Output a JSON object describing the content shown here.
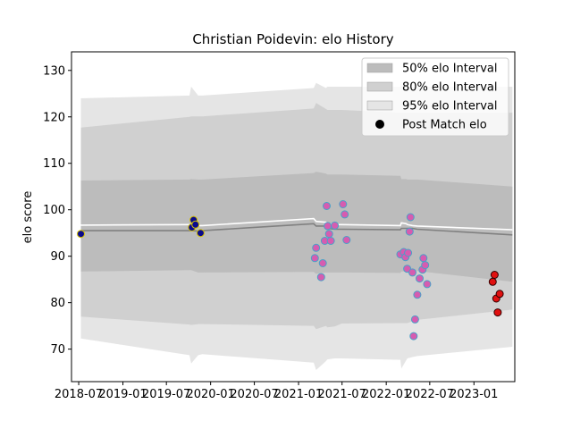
{
  "chart_data": {
    "type": "scatter",
    "title": "Christian Poidevin: elo History",
    "xlabel": "",
    "ylabel": "elo score",
    "xlim": [
      "2018-06-01",
      "2023-06-20"
    ],
    "ylim": [
      63,
      134
    ],
    "x_ticks": [
      "2018-07",
      "2019-01",
      "2019-07",
      "2020-01",
      "2020-07",
      "2021-01",
      "2021-07",
      "2022-01",
      "2022-07",
      "2023-01"
    ],
    "y_ticks": [
      70,
      80,
      90,
      100,
      110,
      120,
      130
    ],
    "grid": false,
    "legend": {
      "position": "top-right",
      "entries": [
        "50% elo Interval",
        "80% elo Interval",
        "95% elo Interval",
        "Post Match elo"
      ]
    },
    "intervals": {
      "dates": [
        "2018-07-10",
        "2019-10-05",
        "2019-10-12",
        "2019-11-10",
        "2019-11-28",
        "2021-03-05",
        "2021-03-15",
        "2021-04-25",
        "2021-05-01",
        "2021-06-01",
        "2021-06-30",
        "2022-03-01",
        "2022-03-05",
        "2022-03-25",
        "2022-03-30",
        "2022-04-20",
        "2022-05-10",
        "2023-06-10"
      ],
      "p95_upper": [
        124.0,
        124.6,
        126.5,
        124.6,
        124.6,
        126.2,
        127.3,
        126.2,
        126.5,
        126.5,
        126.5,
        126.5,
        126.8,
        126.5,
        126.5,
        126.5,
        126.5,
        126.5
      ],
      "p80_upper": [
        117.7,
        120.0,
        120.1,
        120.1,
        120.1,
        121.8,
        123.0,
        121.7,
        121.5,
        121.5,
        121.5,
        120.9,
        120.9,
        120.9,
        120.9,
        120.9,
        120.9,
        120.9
      ],
      "p50_upper": [
        106.3,
        106.5,
        106.6,
        106.5,
        106.5,
        107.9,
        108.2,
        107.8,
        107.6,
        107.6,
        107.6,
        107.3,
        106.6,
        106.6,
        106.5,
        106.5,
        106.5,
        105.0
      ],
      "p50_lower": [
        86.7,
        87.0,
        87.0,
        86.5,
        86.5,
        86.6,
        86.2,
        86.5,
        86.5,
        86.5,
        86.5,
        86.4,
        86.7,
        86.7,
        86.8,
        86.8,
        86.8,
        84.5
      ],
      "p80_lower": [
        77.0,
        75.3,
        75.2,
        75.4,
        75.4,
        75.0,
        74.3,
        75.0,
        74.7,
        74.9,
        75.5,
        75.6,
        75.6,
        75.6,
        75.6,
        76.0,
        76.3,
        78.5
      ],
      "p95_lower": [
        72.3,
        68.7,
        66.9,
        68.7,
        68.9,
        67.1,
        65.5,
        67.4,
        67.8,
        68.0,
        68.0,
        67.7,
        65.8,
        67.6,
        68.0,
        68.3,
        68.5,
        70.5
      ],
      "mean": [
        95.5,
        95.5,
        95.5,
        95.4,
        95.5,
        97.0,
        96.5,
        96.5,
        96.0,
        95.8,
        95.8,
        95.7,
        96.0,
        96.0,
        96.0,
        96.0,
        95.8,
        94.6
      ],
      "white_line": [
        96.7,
        96.8,
        96.8,
        96.6,
        96.6,
        98.1,
        97.5,
        97.3,
        97.0,
        96.8,
        96.8,
        96.6,
        97.2,
        97.0,
        96.8,
        96.6,
        96.5,
        95.7
      ]
    },
    "series": [
      {
        "style": "navy",
        "points": [
          {
            "x": "2018-07-10",
            "y": 94.8
          },
          {
            "x": "2019-10-15",
            "y": 96.2
          },
          {
            "x": "2019-10-22",
            "y": 97.8
          },
          {
            "x": "2019-10-30",
            "y": 96.8
          },
          {
            "x": "2019-11-20",
            "y": 95.0
          }
        ]
      },
      {
        "style": "pink",
        "points": [
          {
            "x": "2021-03-10",
            "y": 89.6
          },
          {
            "x": "2021-03-15",
            "y": 91.8
          },
          {
            "x": "2021-04-05",
            "y": 85.5
          },
          {
            "x": "2021-04-12",
            "y": 88.5
          },
          {
            "x": "2021-04-20",
            "y": 93.3
          },
          {
            "x": "2021-04-28",
            "y": 100.8
          },
          {
            "x": "2021-05-02",
            "y": 96.5
          },
          {
            "x": "2021-05-08",
            "y": 94.8
          },
          {
            "x": "2021-05-15",
            "y": 93.3
          },
          {
            "x": "2021-06-01",
            "y": 96.6
          },
          {
            "x": "2021-07-05",
            "y": 101.2
          },
          {
            "x": "2021-07-12",
            "y": 99.0
          },
          {
            "x": "2021-07-20",
            "y": 93.5
          },
          {
            "x": "2022-03-01",
            "y": 90.4
          },
          {
            "x": "2022-03-15",
            "y": 90.9
          },
          {
            "x": "2022-03-22",
            "y": 89.8
          },
          {
            "x": "2022-03-29",
            "y": 87.3
          },
          {
            "x": "2022-04-02",
            "y": 90.7
          },
          {
            "x": "2022-04-08",
            "y": 95.3
          },
          {
            "x": "2022-04-12",
            "y": 98.4
          },
          {
            "x": "2022-04-20",
            "y": 86.5
          },
          {
            "x": "2022-04-25",
            "y": 72.8
          },
          {
            "x": "2022-05-01",
            "y": 76.4
          },
          {
            "x": "2022-05-10",
            "y": 81.7
          },
          {
            "x": "2022-05-20",
            "y": 85.2
          },
          {
            "x": "2022-06-01",
            "y": 87.1
          },
          {
            "x": "2022-06-05",
            "y": 89.6
          },
          {
            "x": "2022-06-12",
            "y": 88.1
          },
          {
            "x": "2022-06-20",
            "y": 84.0
          }
        ]
      },
      {
        "name": "Post Match elo",
        "style": "red",
        "points": [
          {
            "x": "2023-03-20",
            "y": 84.5
          },
          {
            "x": "2023-03-28",
            "y": 86.0
          },
          {
            "x": "2023-04-04",
            "y": 80.9
          },
          {
            "x": "2023-04-10",
            "y": 77.9
          },
          {
            "x": "2023-04-18",
            "y": 81.9
          }
        ]
      }
    ],
    "colors": {
      "band95": "#e5e5e5",
      "band80": "#d0d0d0",
      "band50": "#bcbcbc",
      "mean_line": "#808080",
      "white_line": "#ffffff",
      "navy_fill": "#0a0a8c",
      "navy_edge": "#d4c000",
      "pink_fill": "#d65cb0",
      "pink_edge": "#4aa0c8",
      "red_fill": "#e01010",
      "red_edge": "#300000"
    }
  }
}
